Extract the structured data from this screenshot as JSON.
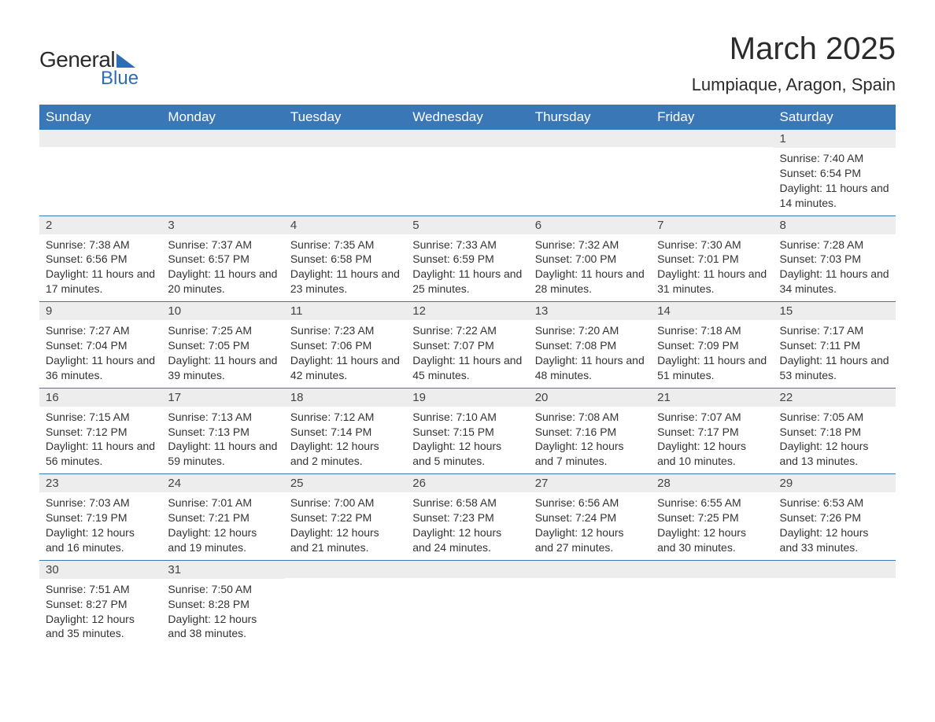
{
  "brand": {
    "general": "General",
    "blue": "Blue"
  },
  "header": {
    "month_title": "March 2025",
    "location": "Lumpiaque, Aragon, Spain"
  },
  "colors": {
    "header_bg": "#3a77b7",
    "header_text": "#ffffff",
    "day_number_bg": "#ededed",
    "border": "#3a77b7",
    "logo_blue": "#2e6db5",
    "text": "#333333"
  },
  "weekdays": [
    "Sunday",
    "Monday",
    "Tuesday",
    "Wednesday",
    "Thursday",
    "Friday",
    "Saturday"
  ],
  "weeks": [
    [
      {
        "empty": true
      },
      {
        "empty": true
      },
      {
        "empty": true
      },
      {
        "empty": true
      },
      {
        "empty": true
      },
      {
        "empty": true
      },
      {
        "day": "1",
        "sunrise": "Sunrise: 7:40 AM",
        "sunset": "Sunset: 6:54 PM",
        "daylight": "Daylight: 11 hours and 14 minutes."
      }
    ],
    [
      {
        "day": "2",
        "sunrise": "Sunrise: 7:38 AM",
        "sunset": "Sunset: 6:56 PM",
        "daylight": "Daylight: 11 hours and 17 minutes."
      },
      {
        "day": "3",
        "sunrise": "Sunrise: 7:37 AM",
        "sunset": "Sunset: 6:57 PM",
        "daylight": "Daylight: 11 hours and 20 minutes."
      },
      {
        "day": "4",
        "sunrise": "Sunrise: 7:35 AM",
        "sunset": "Sunset: 6:58 PM",
        "daylight": "Daylight: 11 hours and 23 minutes."
      },
      {
        "day": "5",
        "sunrise": "Sunrise: 7:33 AM",
        "sunset": "Sunset: 6:59 PM",
        "daylight": "Daylight: 11 hours and 25 minutes."
      },
      {
        "day": "6",
        "sunrise": "Sunrise: 7:32 AM",
        "sunset": "Sunset: 7:00 PM",
        "daylight": "Daylight: 11 hours and 28 minutes."
      },
      {
        "day": "7",
        "sunrise": "Sunrise: 7:30 AM",
        "sunset": "Sunset: 7:01 PM",
        "daylight": "Daylight: 11 hours and 31 minutes."
      },
      {
        "day": "8",
        "sunrise": "Sunrise: 7:28 AM",
        "sunset": "Sunset: 7:03 PM",
        "daylight": "Daylight: 11 hours and 34 minutes."
      }
    ],
    [
      {
        "day": "9",
        "sunrise": "Sunrise: 7:27 AM",
        "sunset": "Sunset: 7:04 PM",
        "daylight": "Daylight: 11 hours and 36 minutes."
      },
      {
        "day": "10",
        "sunrise": "Sunrise: 7:25 AM",
        "sunset": "Sunset: 7:05 PM",
        "daylight": "Daylight: 11 hours and 39 minutes."
      },
      {
        "day": "11",
        "sunrise": "Sunrise: 7:23 AM",
        "sunset": "Sunset: 7:06 PM",
        "daylight": "Daylight: 11 hours and 42 minutes."
      },
      {
        "day": "12",
        "sunrise": "Sunrise: 7:22 AM",
        "sunset": "Sunset: 7:07 PM",
        "daylight": "Daylight: 11 hours and 45 minutes."
      },
      {
        "day": "13",
        "sunrise": "Sunrise: 7:20 AM",
        "sunset": "Sunset: 7:08 PM",
        "daylight": "Daylight: 11 hours and 48 minutes."
      },
      {
        "day": "14",
        "sunrise": "Sunrise: 7:18 AM",
        "sunset": "Sunset: 7:09 PM",
        "daylight": "Daylight: 11 hours and 51 minutes."
      },
      {
        "day": "15",
        "sunrise": "Sunrise: 7:17 AM",
        "sunset": "Sunset: 7:11 PM",
        "daylight": "Daylight: 11 hours and 53 minutes."
      }
    ],
    [
      {
        "day": "16",
        "sunrise": "Sunrise: 7:15 AM",
        "sunset": "Sunset: 7:12 PM",
        "daylight": "Daylight: 11 hours and 56 minutes."
      },
      {
        "day": "17",
        "sunrise": "Sunrise: 7:13 AM",
        "sunset": "Sunset: 7:13 PM",
        "daylight": "Daylight: 11 hours and 59 minutes."
      },
      {
        "day": "18",
        "sunrise": "Sunrise: 7:12 AM",
        "sunset": "Sunset: 7:14 PM",
        "daylight": "Daylight: 12 hours and 2 minutes."
      },
      {
        "day": "19",
        "sunrise": "Sunrise: 7:10 AM",
        "sunset": "Sunset: 7:15 PM",
        "daylight": "Daylight: 12 hours and 5 minutes."
      },
      {
        "day": "20",
        "sunrise": "Sunrise: 7:08 AM",
        "sunset": "Sunset: 7:16 PM",
        "daylight": "Daylight: 12 hours and 7 minutes."
      },
      {
        "day": "21",
        "sunrise": "Sunrise: 7:07 AM",
        "sunset": "Sunset: 7:17 PM",
        "daylight": "Daylight: 12 hours and 10 minutes."
      },
      {
        "day": "22",
        "sunrise": "Sunrise: 7:05 AM",
        "sunset": "Sunset: 7:18 PM",
        "daylight": "Daylight: 12 hours and 13 minutes."
      }
    ],
    [
      {
        "day": "23",
        "sunrise": "Sunrise: 7:03 AM",
        "sunset": "Sunset: 7:19 PM",
        "daylight": "Daylight: 12 hours and 16 minutes."
      },
      {
        "day": "24",
        "sunrise": "Sunrise: 7:01 AM",
        "sunset": "Sunset: 7:21 PM",
        "daylight": "Daylight: 12 hours and 19 minutes."
      },
      {
        "day": "25",
        "sunrise": "Sunrise: 7:00 AM",
        "sunset": "Sunset: 7:22 PM",
        "daylight": "Daylight: 12 hours and 21 minutes."
      },
      {
        "day": "26",
        "sunrise": "Sunrise: 6:58 AM",
        "sunset": "Sunset: 7:23 PM",
        "daylight": "Daylight: 12 hours and 24 minutes."
      },
      {
        "day": "27",
        "sunrise": "Sunrise: 6:56 AM",
        "sunset": "Sunset: 7:24 PM",
        "daylight": "Daylight: 12 hours and 27 minutes."
      },
      {
        "day": "28",
        "sunrise": "Sunrise: 6:55 AM",
        "sunset": "Sunset: 7:25 PM",
        "daylight": "Daylight: 12 hours and 30 minutes."
      },
      {
        "day": "29",
        "sunrise": "Sunrise: 6:53 AM",
        "sunset": "Sunset: 7:26 PM",
        "daylight": "Daylight: 12 hours and 33 minutes."
      }
    ],
    [
      {
        "day": "30",
        "sunrise": "Sunrise: 7:51 AM",
        "sunset": "Sunset: 8:27 PM",
        "daylight": "Daylight: 12 hours and 35 minutes."
      },
      {
        "day": "31",
        "sunrise": "Sunrise: 7:50 AM",
        "sunset": "Sunset: 8:28 PM",
        "daylight": "Daylight: 12 hours and 38 minutes."
      },
      {
        "empty": true
      },
      {
        "empty": true
      },
      {
        "empty": true
      },
      {
        "empty": true
      },
      {
        "empty": true
      }
    ]
  ]
}
